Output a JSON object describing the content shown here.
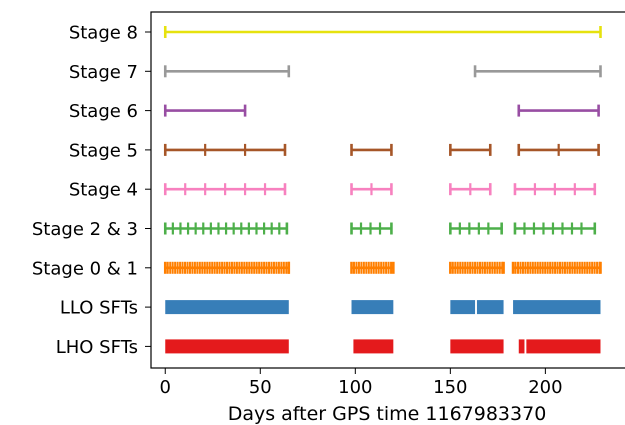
{
  "chart_data": {
    "type": "timeline",
    "xlabel": "Days after GPS time 1167983370",
    "xlim": [
      -7.5,
      244
    ],
    "xticks": [
      0,
      50,
      100,
      150,
      200
    ],
    "ylabel": "",
    "grid": false,
    "legend": "none",
    "rows": [
      {
        "label": "Stage 8",
        "color": "#e6e20e",
        "style": "segments",
        "segments": [
          [
            0,
            229
          ]
        ],
        "ticks": []
      },
      {
        "label": "Stage 7",
        "color": "#999999",
        "style": "segments",
        "segments": [
          [
            0,
            65
          ],
          [
            163,
            229
          ]
        ],
        "ticks": []
      },
      {
        "label": "Stage 6",
        "color": "#984ea3",
        "style": "segments",
        "segments": [
          [
            0,
            42
          ],
          [
            186,
            228
          ]
        ],
        "ticks": []
      },
      {
        "label": "Stage 5",
        "color": "#a65628",
        "style": "segments",
        "segments": [
          [
            0,
            63
          ],
          [
            98,
            119
          ],
          [
            150,
            171
          ],
          [
            186,
            228
          ]
        ],
        "ticks": [
          21,
          42,
          207
        ]
      },
      {
        "label": "Stage 4",
        "color": "#f781bf",
        "style": "segments",
        "segments": [
          [
            0,
            63
          ],
          [
            98,
            119
          ],
          [
            150,
            171
          ],
          [
            184,
            226
          ]
        ],
        "ticks": [
          10.5,
          21,
          31.5,
          42,
          52.5,
          108.5,
          160.5,
          171,
          194.5,
          205,
          215.5
        ]
      },
      {
        "label": "Stage 2 & 3",
        "color": "#4daf4a",
        "style": "segments",
        "segments": [
          [
            0,
            64
          ],
          [
            98,
            119
          ],
          [
            150,
            177
          ],
          [
            184,
            226
          ]
        ],
        "ticks": [
          4,
          8,
          12,
          16,
          20,
          24,
          28,
          32,
          36,
          40,
          44,
          48,
          52,
          56,
          60,
          103,
          108,
          113,
          155,
          160,
          165,
          170,
          189,
          194,
          199,
          204,
          209,
          214,
          219
        ]
      },
      {
        "label": "Stage 0 & 1",
        "color": "#ff7f00",
        "style": "segments",
        "segments": [
          [
            0,
            65
          ],
          [
            98,
            120
          ],
          [
            150,
            178
          ],
          [
            183,
            229
          ]
        ],
        "tick_spacing": 1.3
      },
      {
        "label": "LLO SFTs",
        "color": "#377eb8",
        "style": "bars",
        "segments": [
          [
            0,
            65
          ],
          [
            98,
            120
          ],
          [
            150,
            163
          ],
          [
            164,
            178
          ],
          [
            183,
            229
          ]
        ]
      },
      {
        "label": "LHO SFTs",
        "color": "#e41a1c",
        "style": "bars",
        "segments": [
          [
            0,
            65
          ],
          [
            99,
            120
          ],
          [
            150,
            178
          ],
          [
            186,
            189
          ],
          [
            190,
            229
          ]
        ]
      }
    ]
  }
}
